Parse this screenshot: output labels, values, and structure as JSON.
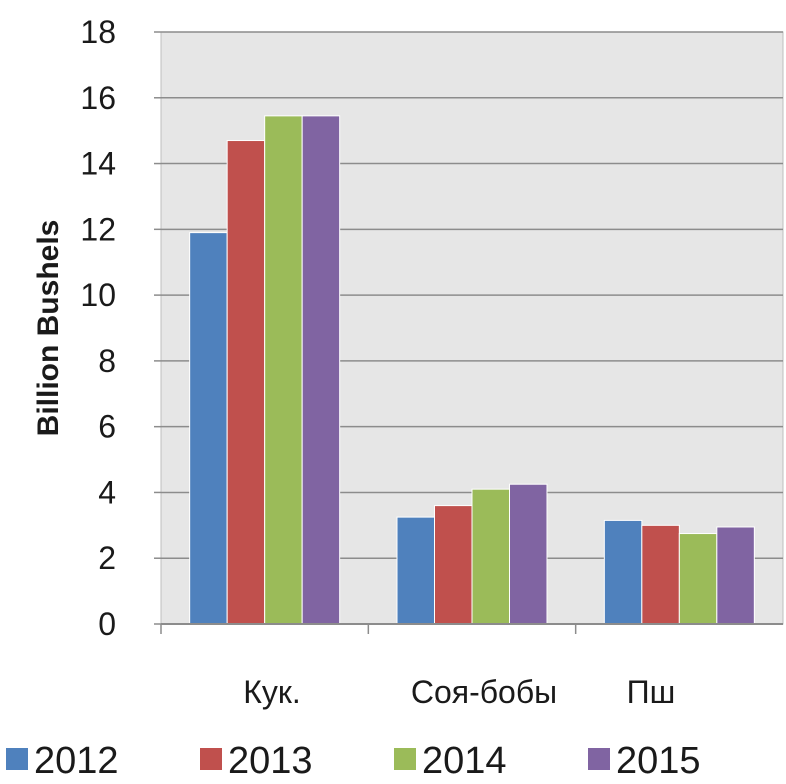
{
  "chart_data": {
    "type": "bar",
    "categories": [
      "Кук.",
      "Соя-бобы",
      "Пш"
    ],
    "series": [
      {
        "name": "2012",
        "color": "#4f81bd",
        "values": [
          11.9,
          3.25,
          3.15
        ]
      },
      {
        "name": "2013",
        "color": "#c0504d",
        "values": [
          14.7,
          3.6,
          3.0
        ]
      },
      {
        "name": "2014",
        "color": "#9bbb59",
        "values": [
          15.45,
          4.1,
          2.75
        ]
      },
      {
        "name": "2015",
        "color": "#8064a2",
        "values": [
          15.45,
          4.25,
          2.95
        ]
      }
    ],
    "ylabel": "Billion Bushels",
    "ylim": [
      0,
      18
    ],
    "yticks": [
      "0",
      "2",
      "4",
      "6",
      "8",
      "10",
      "12",
      "14",
      "16",
      "18"
    ],
    "grid": true,
    "legend_position": "bottom",
    "plot_background": "#e6e6e6"
  }
}
